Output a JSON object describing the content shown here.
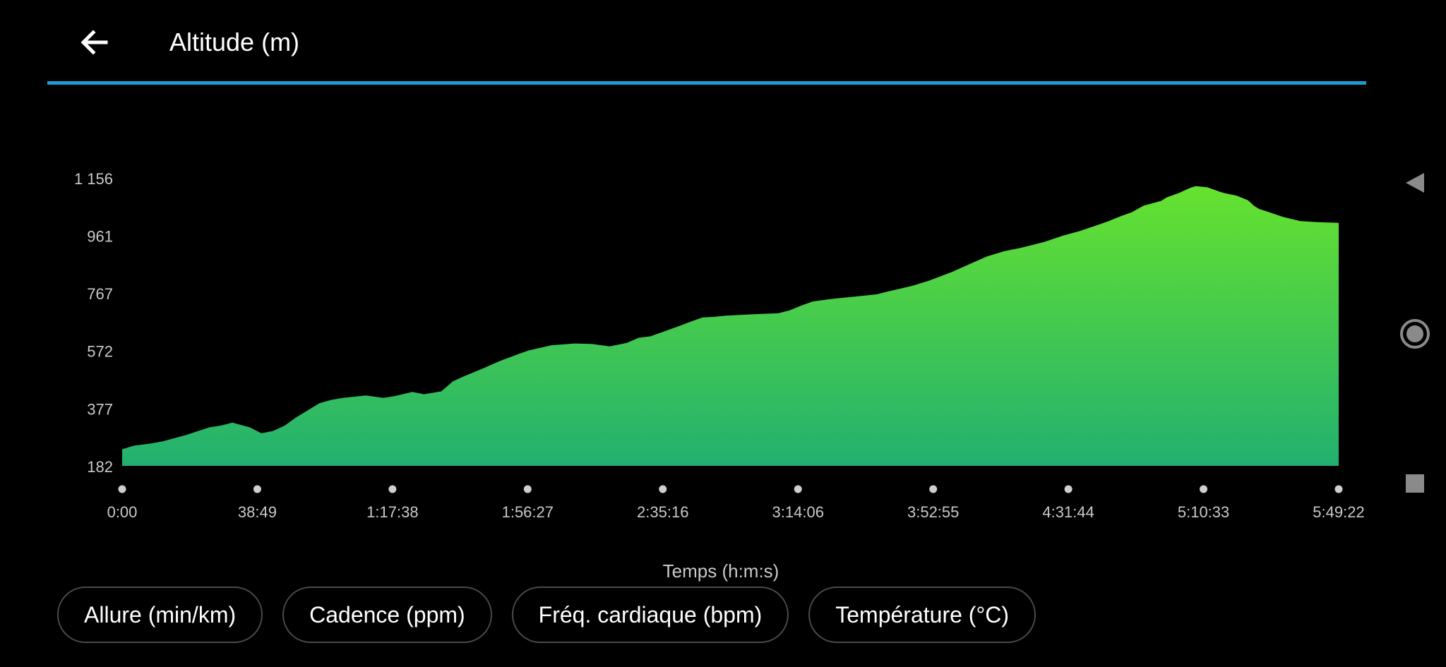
{
  "header": {
    "title": "Altitude (m)"
  },
  "icons": {
    "back": "arrow-left-icon",
    "nav_back": "triangle-left-icon",
    "nav_home": "circle-icon",
    "nav_recents": "square-icon"
  },
  "colors": {
    "accent": "#1e9bd7",
    "area_top": "#66e22f",
    "area_bottom": "#22b070",
    "background": "#000000"
  },
  "chart_data": {
    "type": "area",
    "xlabel": "Temps (h:m:s)",
    "ylabel": "",
    "x_unit": "seconds",
    "x_ticks": [
      {
        "value": 0,
        "label": "0:00"
      },
      {
        "value": 2329,
        "label": "38:49"
      },
      {
        "value": 4658,
        "label": "1:17:38"
      },
      {
        "value": 6987,
        "label": "1:56:27"
      },
      {
        "value": 9316,
        "label": "2:35:16"
      },
      {
        "value": 11646,
        "label": "3:14:06"
      },
      {
        "value": 13975,
        "label": "3:52:55"
      },
      {
        "value": 16304,
        "label": "4:31:44"
      },
      {
        "value": 18633,
        "label": "5:10:33"
      },
      {
        "value": 20962,
        "label": "5:49:22"
      }
    ],
    "y_ticks": [
      {
        "value": 182,
        "label": "182"
      },
      {
        "value": 377,
        "label": "377"
      },
      {
        "value": 572,
        "label": "572"
      },
      {
        "value": 767,
        "label": "767"
      },
      {
        "value": 961,
        "label": "961"
      },
      {
        "value": 1156,
        "label": "1 156"
      }
    ],
    "xlim": [
      0,
      20962
    ],
    "ylim": [
      182,
      1156
    ],
    "grid": false,
    "series": [
      {
        "x": [
          0,
          200,
          500,
          700,
          1100,
          1500,
          1700,
          1900,
          2200,
          2400,
          2600,
          2800,
          3000,
          3200,
          3400,
          3600,
          3800,
          4200,
          4500,
          4700,
          5000,
          5200,
          5500,
          5700,
          5900,
          6200,
          6500,
          6800,
          7000,
          7400,
          7800,
          8100,
          8400,
          8700,
          8900,
          9100,
          9300,
          9600,
          9800,
          10000,
          10200,
          10400,
          10600,
          11000,
          11300,
          11500,
          11700,
          11900,
          12200,
          12500,
          12800,
          13000,
          13200,
          13600,
          13900,
          14300,
          14600,
          14900,
          15200,
          15500,
          15700,
          15900,
          16200,
          16500,
          16800,
          17000,
          17200,
          17400,
          17600,
          17900,
          18000,
          18200,
          18400,
          18500,
          18700,
          18900,
          19000,
          19200,
          19400,
          19500,
          19600,
          19700,
          20000,
          20300,
          20600,
          20962
        ],
        "y": [
          238,
          250,
          258,
          265,
          286,
          312,
          318,
          328,
          312,
          292,
          300,
          318,
          346,
          370,
          394,
          405,
          412,
          420,
          412,
          418,
          432,
          424,
          434,
          468,
          486,
          510,
          536,
          558,
          572,
          590,
          596,
          594,
          586,
          598,
          615,
          620,
          634,
          655,
          670,
          684,
          686,
          690,
          692,
          696,
          698,
          708,
          724,
          738,
          746,
          752,
          758,
          762,
          772,
          790,
          808,
          838,
          864,
          890,
          908,
          920,
          930,
          940,
          960,
          976,
          996,
          1010,
          1026,
          1040,
          1062,
          1078,
          1090,
          1104,
          1122,
          1128,
          1124,
          1110,
          1104,
          1096,
          1080,
          1062,
          1050,
          1044,
          1024,
          1010,
          1006,
          1004
        ]
      }
    ]
  },
  "chips": [
    {
      "label": "Allure (min/km)"
    },
    {
      "label": "Cadence (ppm)"
    },
    {
      "label": "Fréq. cardiaque (bpm)"
    },
    {
      "label": "Température (°C)"
    }
  ]
}
